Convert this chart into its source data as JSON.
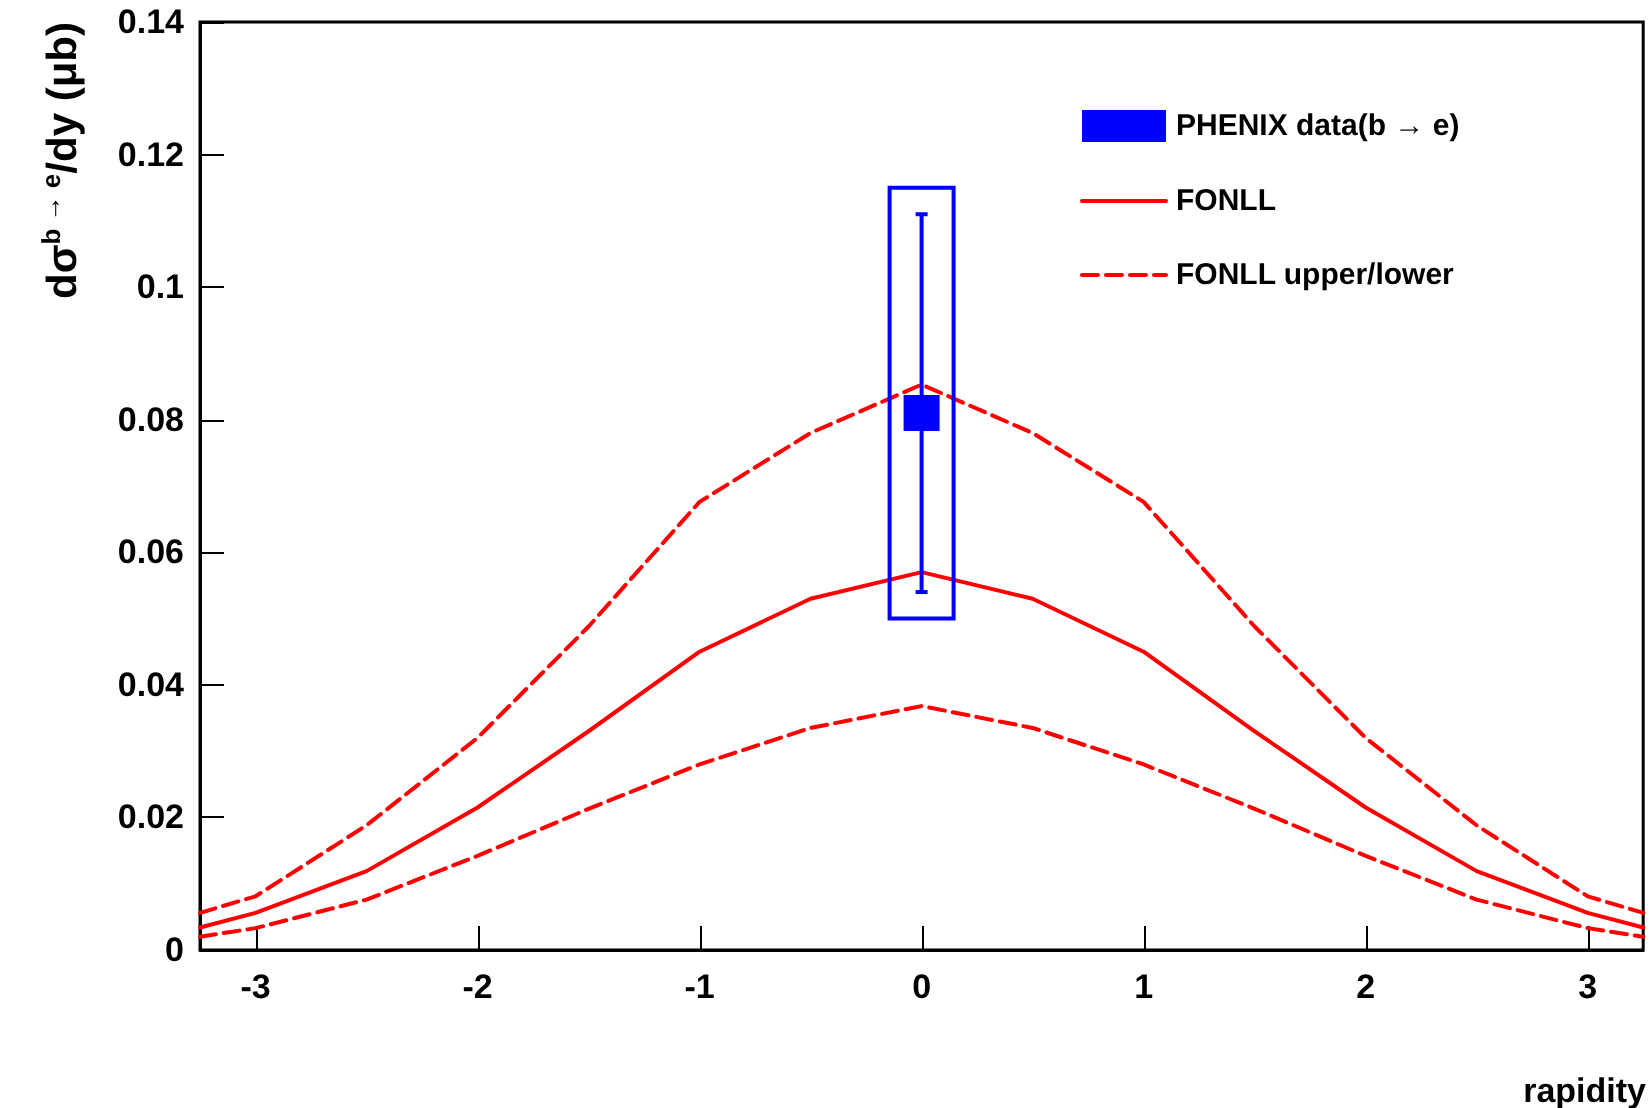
{
  "chart_data": {
    "type": "line",
    "xlabel": "rapidity",
    "ylabel": "dσ$^{b → e}$/dy (μb)",
    "xlim": [
      -3.25,
      3.25
    ],
    "xticks": [
      -3,
      -2,
      -1,
      0,
      1,
      2,
      3
    ],
    "ylim": [
      0,
      0.14
    ],
    "yticks": [
      0,
      0.02,
      0.04,
      0.06,
      0.08,
      0.1,
      0.12,
      0.14
    ],
    "grid": false,
    "legend": "top right",
    "series": [
      {
        "name": "PHENIX data(b → e)",
        "type": "scatter",
        "color": "#0000ff",
        "marker": "square",
        "x": [
          0
        ],
        "values": [
          0.081
        ],
        "errors": [
          [
            0.054,
            0.111
          ]
        ]
      },
      {
        "type": "bar",
        "color": "#0000ff",
        "x": [
          0
        ],
        "base": [
          0.05
        ],
        "values": [
          0.065
        ]
      },
      {
        "name": "FONLL",
        "color": "#ff0000",
        "line_style": "solid",
        "marker": "none",
        "x": [
          -3.25,
          -3,
          -2.5,
          -2,
          -1.5,
          -1,
          -0.5,
          0,
          0.5,
          1,
          1.5,
          2,
          2.5,
          3,
          3.25
        ],
        "values": [
          0.0034,
          0.0056,
          0.0119,
          0.0215,
          0.033,
          0.045,
          0.053,
          0.057,
          0.053,
          0.045,
          0.033,
          0.0215,
          0.0119,
          0.0056,
          0.0034
        ]
      },
      {
        "name": "FONLL upper/lower",
        "color": "#ff0000",
        "line_style": "dashed",
        "marker": "none",
        "x": [
          -3.25,
          -3,
          -2.5,
          -2,
          -1.5,
          -1,
          -0.5,
          0,
          0.5,
          1,
          1.5,
          2,
          2.5,
          3,
          3.25
        ],
        "values": [
          0.0056,
          0.0081,
          0.0188,
          0.032,
          0.0488,
          0.0676,
          0.078,
          0.0853,
          0.078,
          0.0676,
          0.0488,
          0.032,
          0.0188,
          0.0081,
          0.0056
        ]
      },
      {
        "color": "#ff0000",
        "line_style": "dashed",
        "marker": "none",
        "x": [
          -3.25,
          -3,
          -2.5,
          -2,
          -1.5,
          -1,
          -0.5,
          0,
          0.5,
          1,
          1.5,
          2,
          2.5,
          3,
          3.25
        ],
        "values": [
          0.002,
          0.0033,
          0.0076,
          0.0142,
          0.0213,
          0.028,
          0.0335,
          0.0368,
          0.0335,
          0.028,
          0.0213,
          0.0142,
          0.0076,
          0.0033,
          0.002
        ]
      }
    ]
  }
}
